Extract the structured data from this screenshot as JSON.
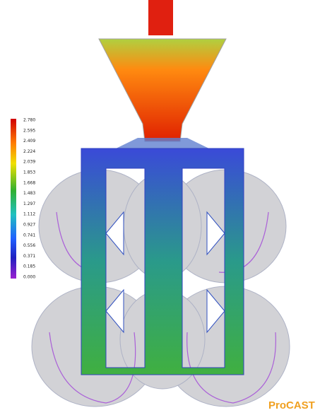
{
  "legend": {
    "labels": [
      "2.780",
      "2.595",
      "2.409",
      "2.224",
      "2.039",
      "1.853",
      "1.668",
      "1.483",
      "1.297",
      "1.112",
      "0.927",
      "0.741",
      "0.556",
      "0.371",
      "0.185",
      "0.000"
    ]
  },
  "brand": "ProCAST"
}
